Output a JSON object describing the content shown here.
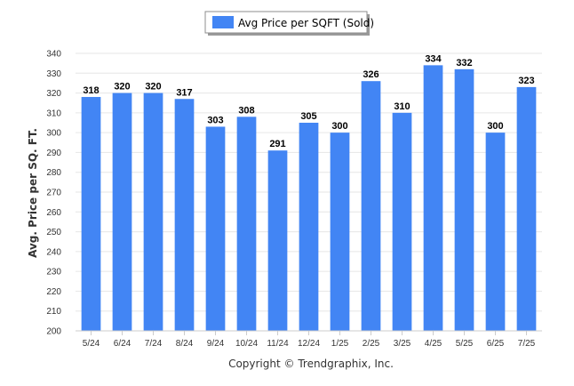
{
  "chart_data": {
    "type": "bar",
    "categories": [
      "5/24",
      "6/24",
      "7/24",
      "8/24",
      "9/24",
      "10/24",
      "11/24",
      "12/24",
      "1/25",
      "2/25",
      "3/25",
      "4/25",
      "5/25",
      "6/25",
      "7/25"
    ],
    "series": [
      {
        "name": "Avg Price per SQFT (Sold)",
        "values": [
          318,
          320,
          320,
          317,
          303,
          308,
          291,
          305,
          300,
          326,
          310,
          334,
          332,
          300,
          323
        ],
        "color": "#4285f4"
      }
    ],
    "ylabel": "Avg. Price per SQ. FT.",
    "ylim": [
      200,
      340
    ],
    "yticks": [
      200,
      210,
      220,
      230,
      240,
      250,
      260,
      270,
      280,
      290,
      300,
      310,
      320,
      330,
      340
    ],
    "grid": true,
    "legend_position": "top-center",
    "data_labels": true
  },
  "credit": "Copyright © Trendgraphix, Inc."
}
